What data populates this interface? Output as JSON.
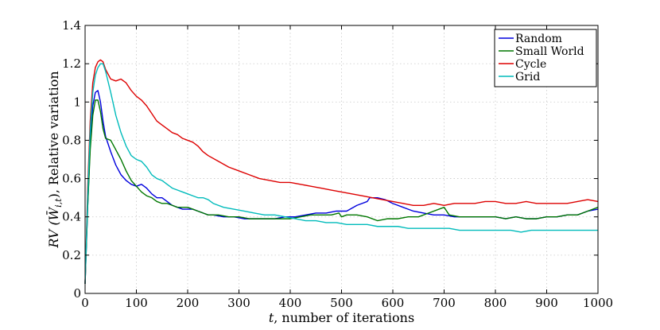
{
  "chart_data": {
    "type": "line",
    "title": "",
    "xlabel_var": "t",
    "xlabel_text": ", number of iterations",
    "ylabel_math": "RV (W̄",
    "ylabel_sub": "i,t",
    "ylabel_text": "), Relative variation",
    "xlim": [
      0,
      1000
    ],
    "ylim": [
      0,
      1.4
    ],
    "xticks": [
      0,
      100,
      200,
      300,
      400,
      500,
      600,
      700,
      800,
      900,
      1000
    ],
    "xtick_labels": [
      "0",
      "100",
      "200",
      "300",
      "400",
      "500",
      "600",
      "700",
      "800",
      "900",
      "1000"
    ],
    "yticks": [
      0,
      0.2,
      0.4,
      0.6,
      0.8,
      1.0,
      1.2,
      1.4
    ],
    "ytick_labels": [
      "0",
      "0.2",
      "0.4",
      "0.6",
      "0.8",
      "1",
      "1.2",
      "1.4"
    ],
    "grid": true,
    "legend_position": "top-right",
    "series": [
      {
        "name": "Random",
        "color": "#0000dd",
        "points": [
          [
            0,
            0.05
          ],
          [
            5,
            0.45
          ],
          [
            10,
            0.78
          ],
          [
            15,
            0.98
          ],
          [
            20,
            1.05
          ],
          [
            25,
            1.06
          ],
          [
            30,
            1.0
          ],
          [
            35,
            0.9
          ],
          [
            40,
            0.82
          ],
          [
            50,
            0.74
          ],
          [
            60,
            0.67
          ],
          [
            70,
            0.62
          ],
          [
            80,
            0.59
          ],
          [
            90,
            0.57
          ],
          [
            100,
            0.56
          ],
          [
            110,
            0.57
          ],
          [
            120,
            0.55
          ],
          [
            130,
            0.52
          ],
          [
            140,
            0.5
          ],
          [
            150,
            0.5
          ],
          [
            160,
            0.48
          ],
          [
            170,
            0.46
          ],
          [
            180,
            0.45
          ],
          [
            190,
            0.44
          ],
          [
            200,
            0.44
          ],
          [
            210,
            0.44
          ],
          [
            220,
            0.43
          ],
          [
            230,
            0.42
          ],
          [
            240,
            0.41
          ],
          [
            250,
            0.41
          ],
          [
            270,
            0.4
          ],
          [
            290,
            0.4
          ],
          [
            310,
            0.39
          ],
          [
            330,
            0.39
          ],
          [
            350,
            0.39
          ],
          [
            370,
            0.39
          ],
          [
            390,
            0.4
          ],
          [
            410,
            0.4
          ],
          [
            430,
            0.41
          ],
          [
            450,
            0.42
          ],
          [
            470,
            0.42
          ],
          [
            490,
            0.43
          ],
          [
            510,
            0.43
          ],
          [
            530,
            0.46
          ],
          [
            550,
            0.48
          ],
          [
            555,
            0.5
          ],
          [
            570,
            0.5
          ],
          [
            585,
            0.49
          ],
          [
            600,
            0.47
          ],
          [
            620,
            0.45
          ],
          [
            640,
            0.43
          ],
          [
            660,
            0.42
          ],
          [
            680,
            0.41
          ],
          [
            700,
            0.41
          ],
          [
            720,
            0.4
          ],
          [
            740,
            0.4
          ],
          [
            760,
            0.4
          ],
          [
            780,
            0.4
          ],
          [
            800,
            0.4
          ],
          [
            820,
            0.39
          ],
          [
            840,
            0.4
          ],
          [
            860,
            0.39
          ],
          [
            880,
            0.39
          ],
          [
            900,
            0.4
          ],
          [
            920,
            0.4
          ],
          [
            940,
            0.41
          ],
          [
            960,
            0.41
          ],
          [
            980,
            0.43
          ],
          [
            1000,
            0.44
          ]
        ]
      },
      {
        "name": "Small World",
        "color": "#007700",
        "points": [
          [
            0,
            0.05
          ],
          [
            5,
            0.45
          ],
          [
            10,
            0.75
          ],
          [
            15,
            0.93
          ],
          [
            20,
            1.01
          ],
          [
            25,
            1.01
          ],
          [
            30,
            0.95
          ],
          [
            35,
            0.86
          ],
          [
            40,
            0.81
          ],
          [
            50,
            0.8
          ],
          [
            60,
            0.75
          ],
          [
            70,
            0.7
          ],
          [
            80,
            0.64
          ],
          [
            90,
            0.59
          ],
          [
            100,
            0.56
          ],
          [
            110,
            0.53
          ],
          [
            120,
            0.51
          ],
          [
            130,
            0.5
          ],
          [
            140,
            0.48
          ],
          [
            150,
            0.47
          ],
          [
            160,
            0.47
          ],
          [
            170,
            0.46
          ],
          [
            180,
            0.45
          ],
          [
            190,
            0.45
          ],
          [
            200,
            0.45
          ],
          [
            210,
            0.44
          ],
          [
            220,
            0.43
          ],
          [
            230,
            0.42
          ],
          [
            240,
            0.41
          ],
          [
            260,
            0.41
          ],
          [
            280,
            0.4
          ],
          [
            300,
            0.4
          ],
          [
            320,
            0.39
          ],
          [
            340,
            0.39
          ],
          [
            360,
            0.39
          ],
          [
            380,
            0.39
          ],
          [
            400,
            0.39
          ],
          [
            420,
            0.4
          ],
          [
            440,
            0.41
          ],
          [
            460,
            0.41
          ],
          [
            480,
            0.41
          ],
          [
            495,
            0.42
          ],
          [
            500,
            0.4
          ],
          [
            510,
            0.41
          ],
          [
            530,
            0.41
          ],
          [
            550,
            0.4
          ],
          [
            570,
            0.38
          ],
          [
            590,
            0.39
          ],
          [
            610,
            0.39
          ],
          [
            630,
            0.4
          ],
          [
            650,
            0.4
          ],
          [
            670,
            0.42
          ],
          [
            690,
            0.44
          ],
          [
            700,
            0.45
          ],
          [
            710,
            0.41
          ],
          [
            730,
            0.4
          ],
          [
            760,
            0.4
          ],
          [
            780,
            0.4
          ],
          [
            800,
            0.4
          ],
          [
            820,
            0.39
          ],
          [
            840,
            0.4
          ],
          [
            860,
            0.39
          ],
          [
            880,
            0.39
          ],
          [
            900,
            0.4
          ],
          [
            920,
            0.4
          ],
          [
            940,
            0.41
          ],
          [
            960,
            0.41
          ],
          [
            980,
            0.43
          ],
          [
            1000,
            0.45
          ]
        ]
      },
      {
        "name": "Cycle",
        "color": "#dd0000",
        "points": [
          [
            0,
            0.05
          ],
          [
            5,
            0.55
          ],
          [
            10,
            0.9
          ],
          [
            15,
            1.1
          ],
          [
            20,
            1.18
          ],
          [
            25,
            1.21
          ],
          [
            30,
            1.22
          ],
          [
            35,
            1.21
          ],
          [
            40,
            1.17
          ],
          [
            50,
            1.12
          ],
          [
            60,
            1.11
          ],
          [
            70,
            1.12
          ],
          [
            80,
            1.1
          ],
          [
            90,
            1.06
          ],
          [
            100,
            1.03
          ],
          [
            110,
            1.01
          ],
          [
            120,
            0.98
          ],
          [
            130,
            0.94
          ],
          [
            140,
            0.9
          ],
          [
            150,
            0.88
          ],
          [
            160,
            0.86
          ],
          [
            170,
            0.84
          ],
          [
            180,
            0.83
          ],
          [
            190,
            0.81
          ],
          [
            200,
            0.8
          ],
          [
            210,
            0.79
          ],
          [
            220,
            0.77
          ],
          [
            230,
            0.74
          ],
          [
            240,
            0.72
          ],
          [
            260,
            0.69
          ],
          [
            280,
            0.66
          ],
          [
            300,
            0.64
          ],
          [
            320,
            0.62
          ],
          [
            340,
            0.6
          ],
          [
            360,
            0.59
          ],
          [
            380,
            0.58
          ],
          [
            400,
            0.58
          ],
          [
            420,
            0.57
          ],
          [
            440,
            0.56
          ],
          [
            460,
            0.55
          ],
          [
            480,
            0.54
          ],
          [
            500,
            0.53
          ],
          [
            520,
            0.52
          ],
          [
            540,
            0.51
          ],
          [
            560,
            0.5
          ],
          [
            580,
            0.49
          ],
          [
            600,
            0.48
          ],
          [
            620,
            0.47
          ],
          [
            640,
            0.46
          ],
          [
            660,
            0.46
          ],
          [
            680,
            0.47
          ],
          [
            700,
            0.46
          ],
          [
            720,
            0.47
          ],
          [
            740,
            0.47
          ],
          [
            760,
            0.47
          ],
          [
            780,
            0.48
          ],
          [
            800,
            0.48
          ],
          [
            820,
            0.47
          ],
          [
            840,
            0.47
          ],
          [
            860,
            0.48
          ],
          [
            880,
            0.47
          ],
          [
            900,
            0.47
          ],
          [
            920,
            0.47
          ],
          [
            940,
            0.47
          ],
          [
            960,
            0.48
          ],
          [
            980,
            0.49
          ],
          [
            1000,
            0.48
          ]
        ]
      },
      {
        "name": "Grid",
        "color": "#00bbbb",
        "points": [
          [
            0,
            0.05
          ],
          [
            5,
            0.5
          ],
          [
            10,
            0.85
          ],
          [
            15,
            1.05
          ],
          [
            20,
            1.14
          ],
          [
            25,
            1.18
          ],
          [
            30,
            1.2
          ],
          [
            35,
            1.2
          ],
          [
            40,
            1.16
          ],
          [
            50,
            1.05
          ],
          [
            60,
            0.93
          ],
          [
            70,
            0.84
          ],
          [
            80,
            0.77
          ],
          [
            90,
            0.72
          ],
          [
            100,
            0.7
          ],
          [
            110,
            0.69
          ],
          [
            120,
            0.66
          ],
          [
            130,
            0.62
          ],
          [
            140,
            0.6
          ],
          [
            150,
            0.59
          ],
          [
            160,
            0.57
          ],
          [
            170,
            0.55
          ],
          [
            180,
            0.54
          ],
          [
            190,
            0.53
          ],
          [
            200,
            0.52
          ],
          [
            210,
            0.51
          ],
          [
            220,
            0.5
          ],
          [
            230,
            0.5
          ],
          [
            240,
            0.49
          ],
          [
            250,
            0.47
          ],
          [
            270,
            0.45
          ],
          [
            290,
            0.44
          ],
          [
            310,
            0.43
          ],
          [
            330,
            0.42
          ],
          [
            350,
            0.41
          ],
          [
            370,
            0.41
          ],
          [
            390,
            0.4
          ],
          [
            410,
            0.39
          ],
          [
            430,
            0.38
          ],
          [
            450,
            0.38
          ],
          [
            470,
            0.37
          ],
          [
            490,
            0.37
          ],
          [
            510,
            0.36
          ],
          [
            530,
            0.36
          ],
          [
            550,
            0.36
          ],
          [
            570,
            0.35
          ],
          [
            590,
            0.35
          ],
          [
            610,
            0.35
          ],
          [
            630,
            0.34
          ],
          [
            650,
            0.34
          ],
          [
            670,
            0.34
          ],
          [
            690,
            0.34
          ],
          [
            710,
            0.34
          ],
          [
            730,
            0.33
          ],
          [
            750,
            0.33
          ],
          [
            770,
            0.33
          ],
          [
            790,
            0.33
          ],
          [
            810,
            0.33
          ],
          [
            830,
            0.33
          ],
          [
            850,
            0.32
          ],
          [
            870,
            0.33
          ],
          [
            890,
            0.33
          ],
          [
            910,
            0.33
          ],
          [
            930,
            0.33
          ],
          [
            950,
            0.33
          ],
          [
            970,
            0.33
          ],
          [
            990,
            0.33
          ],
          [
            1000,
            0.33
          ]
        ]
      }
    ]
  }
}
